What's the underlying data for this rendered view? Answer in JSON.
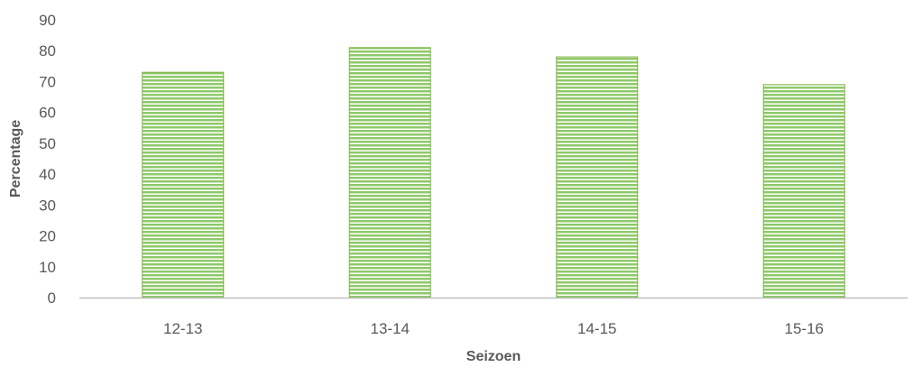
{
  "chart_data": {
    "type": "bar",
    "title": "",
    "xlabel": "Seizoen",
    "ylabel": "Percentage",
    "categories": [
      "12-13",
      "13-14",
      "14-15",
      "15-16"
    ],
    "values": [
      73,
      81,
      78,
      69
    ],
    "ylim": [
      0,
      90
    ],
    "yticks": [
      "0",
      "10",
      "20",
      "30",
      "40",
      "50",
      "60",
      "70",
      "80",
      "90"
    ],
    "grid": false,
    "legend": "none",
    "colors": {
      "bar_fill": "#8fc96a",
      "bar_stripe": "#ffffff",
      "bar_border": "#7cb342",
      "axis_line": "#bfbfbf",
      "text": "#595959"
    }
  }
}
